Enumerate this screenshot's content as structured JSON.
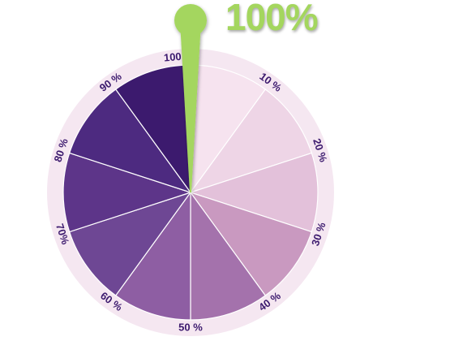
{
  "gauge": {
    "value_label": "100%",
    "value_percent": 100,
    "ticks": [
      "10 %",
      "20 %",
      "30 %",
      "40 %",
      "50 %",
      "60 %",
      "70%",
      "80 %",
      "90 %",
      "100 %"
    ],
    "segment_colors": [
      "#f6e3ef",
      "#eed5e6",
      "#e3c1da",
      "#c999c0",
      "#a472ac",
      "#8e5ea3",
      "#6e4794",
      "#5d3589",
      "#4d2a80",
      "#3c1a6e"
    ],
    "ring_color": "#f5e7f1",
    "label_color": "#3c1a6e",
    "needle_color": "#a4d65e"
  }
}
